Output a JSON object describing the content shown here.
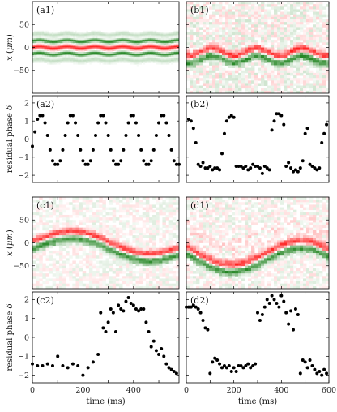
{
  "chart_data": [
    {
      "id": "a1",
      "type": "heatmap",
      "label": "(a1)",
      "ylabel": "x (μm)",
      "ylim": [
        -100,
        100
      ],
      "yticks": [
        50,
        0,
        -50
      ],
      "xlim": [
        0,
        580
      ],
      "description_ridges": {
        "red_center_amplitude": 2,
        "green_offsets": [
          14,
          -14
        ],
        "period_ms": 110,
        "noise": 0.05
      }
    },
    {
      "id": "b1",
      "type": "heatmap",
      "label": "(b1)",
      "ylim": [
        -100,
        100
      ],
      "xlim": [
        0,
        600
      ],
      "description_ridges": {
        "red_center_offset": -10,
        "red_amplitude": 8,
        "period_ms": 190,
        "noise": 0.45
      }
    },
    {
      "id": "a2",
      "type": "scatter",
      "label": "(a2)",
      "ylabel": "residual phase δ",
      "ylim": [
        -2.4,
        2.4
      ],
      "yticks": [
        2,
        1,
        0,
        -1,
        -2
      ],
      "xlim": [
        0,
        580
      ],
      "x": [
        0,
        10,
        20,
        30,
        40,
        50,
        60,
        70,
        80,
        90,
        100,
        110,
        120,
        130,
        140,
        150,
        160,
        170,
        180,
        190,
        200,
        210,
        220,
        230,
        240,
        250,
        260,
        270,
        280,
        290,
        300,
        310,
        320,
        330,
        340,
        350,
        360,
        370,
        380,
        390,
        400,
        410,
        420,
        430,
        440,
        450,
        460,
        470,
        480,
        490,
        500,
        510,
        520,
        530,
        540,
        550,
        560,
        570,
        580
      ],
      "y": [
        -0.4,
        0.4,
        1.1,
        1.3,
        1.3,
        0.9,
        0.2,
        -0.6,
        -1.2,
        -1.4,
        -1.4,
        -1.2,
        -0.6,
        0.2,
        0.9,
        1.3,
        1.3,
        0.9,
        0.2,
        -0.6,
        -1.2,
        -1.4,
        -1.4,
        -1.2,
        -0.6,
        0.2,
        0.9,
        1.3,
        1.3,
        0.9,
        0.2,
        -0.6,
        -1.2,
        -1.4,
        -1.4,
        -1.2,
        -0.6,
        0.2,
        0.9,
        1.3,
        1.3,
        0.9,
        0.2,
        -0.6,
        -1.2,
        -1.4,
        -1.4,
        -1.2,
        -0.6,
        0.2,
        0.9,
        1.3,
        1.3,
        0.9,
        0.2,
        -0.6,
        -1.2,
        -1.4,
        -1.4
      ]
    },
    {
      "id": "b2",
      "type": "scatter",
      "label": "(b2)",
      "ylim": [
        -2.4,
        2.4
      ],
      "xlim": [
        0,
        600
      ],
      "x": [
        10,
        20,
        30,
        40,
        50,
        60,
        70,
        80,
        90,
        100,
        110,
        120,
        130,
        140,
        150,
        160,
        170,
        180,
        190,
        200,
        210,
        220,
        230,
        240,
        250,
        260,
        270,
        280,
        290,
        300,
        310,
        320,
        330,
        340,
        350,
        360,
        370,
        380,
        390,
        400,
        410,
        420,
        430,
        440,
        450,
        460,
        470,
        480,
        490,
        500,
        510,
        520,
        530,
        540,
        550,
        560,
        570,
        580,
        590
      ],
      "y": [
        1.1,
        1.0,
        0.6,
        -0.2,
        -1.4,
        -1.5,
        -1.3,
        -1.6,
        -1.6,
        -1.5,
        -1.7,
        -1.6,
        -1.6,
        -1.7,
        -0.8,
        0.3,
        1.0,
        1.2,
        1.3,
        1.2,
        -1.5,
        -1.5,
        -1.5,
        -1.6,
        -1.5,
        -1.7,
        -1.6,
        -1.4,
        -1.5,
        -1.5,
        -1.6,
        -1.9,
        -1.5,
        -1.6,
        -1.7,
        0.5,
        1.0,
        1.4,
        1.4,
        1.3,
        0.8,
        -1.5,
        -1.3,
        -1.6,
        -1.8,
        -1.7,
        -1.8,
        -1.6,
        -1.2,
        0.3,
        0.6,
        -1.4,
        -1.5,
        -1.6,
        -1.7,
        -1.6,
        -0.2,
        0.3,
        0.8
      ]
    },
    {
      "id": "c1",
      "type": "heatmap",
      "label": "(c1)",
      "ylabel": "x (μm)",
      "ylim": [
        -100,
        100
      ],
      "yticks": [
        50,
        0,
        -50
      ],
      "xlim": [
        0,
        580
      ],
      "description_ridges": {
        "red_center_offset": 10,
        "red_amplitude": 20,
        "period_ms": 560,
        "noise": 0.3
      }
    },
    {
      "id": "d1",
      "type": "heatmap",
      "label": "(d1)",
      "ylim": [
        -100,
        100
      ],
      "xlim": [
        0,
        600
      ],
      "description_ridges": {
        "red_center_offset": -20,
        "red_amplitude": 28,
        "period_ms": 600,
        "noise": 0.35
      }
    },
    {
      "id": "c2",
      "type": "scatter",
      "label": "(c2)",
      "ylabel": "residual phase δ",
      "xlabel": "time (ms)",
      "ylim": [
        -2.4,
        2.4
      ],
      "yticks": [
        2,
        1,
        0,
        -1,
        -2
      ],
      "xlim": [
        0,
        580
      ],
      "xticks": [
        0,
        200,
        400
      ],
      "x": [
        0,
        20,
        40,
        60,
        80,
        100,
        120,
        140,
        160,
        180,
        200,
        220,
        240,
        260,
        270,
        280,
        290,
        300,
        310,
        320,
        330,
        340,
        350,
        360,
        370,
        380,
        390,
        400,
        410,
        420,
        430,
        440,
        450,
        460,
        470,
        480,
        490,
        500,
        510,
        520,
        530,
        540,
        550,
        560,
        570
      ],
      "y": [
        -1.4,
        -1.5,
        -1.5,
        -1.4,
        -1.5,
        -1.0,
        -1.5,
        -1.6,
        -1.4,
        -1.5,
        -2.0,
        -1.6,
        -1.3,
        -0.9,
        1.3,
        0.5,
        0.3,
        0.8,
        1.5,
        1.3,
        0.3,
        1.7,
        1.5,
        1.4,
        1.9,
        2.1,
        1.8,
        1.7,
        1.5,
        1.4,
        1.5,
        1.5,
        0.8,
        0.3,
        -0.5,
        -0.2,
        -0.7,
        -0.9,
        -0.6,
        -1.0,
        -1.4,
        -1.6,
        -1.7,
        -1.8,
        -1.9
      ]
    },
    {
      "id": "d2",
      "type": "scatter",
      "label": "(d2)",
      "xlabel": "time (ms)",
      "ylim": [
        -2.4,
        2.4
      ],
      "xlim": [
        0,
        600
      ],
      "xticks": [
        0,
        200,
        400,
        600
      ],
      "x": [
        0,
        10,
        20,
        30,
        40,
        50,
        60,
        70,
        80,
        90,
        100,
        110,
        120,
        130,
        140,
        150,
        160,
        170,
        180,
        190,
        200,
        210,
        220,
        230,
        240,
        250,
        260,
        270,
        280,
        290,
        300,
        310,
        320,
        330,
        340,
        350,
        360,
        370,
        380,
        390,
        400,
        410,
        420,
        430,
        440,
        450,
        460,
        470,
        480,
        490,
        500,
        510,
        520,
        530,
        540,
        550,
        560,
        570,
        580,
        590
      ],
      "y": [
        1.6,
        1.6,
        1.6,
        1.7,
        1.6,
        1.5,
        1.3,
        0.9,
        0.5,
        0.4,
        -1.9,
        -1.3,
        -1.1,
        -1.2,
        -1.4,
        -1.6,
        -1.5,
        -1.6,
        -1.5,
        -1.8,
        -1.6,
        -1.8,
        -1.5,
        -1.5,
        -1.6,
        -1.5,
        -1.4,
        -1.6,
        -1.5,
        -1.4,
        1.3,
        0.9,
        1.2,
        1.6,
        2.0,
        1.8,
        2.2,
        2.0,
        1.8,
        1.6,
        2.2,
        1.9,
        1.3,
        0.7,
        1.4,
        0.4,
        1.5,
        1.2,
        -1.9,
        -1.2,
        -1.3,
        -1.6,
        -1.2,
        -1.5,
        -1.7,
        -1.9,
        -1.8,
        -2.0,
        -1.7,
        -1.9
      ]
    }
  ]
}
